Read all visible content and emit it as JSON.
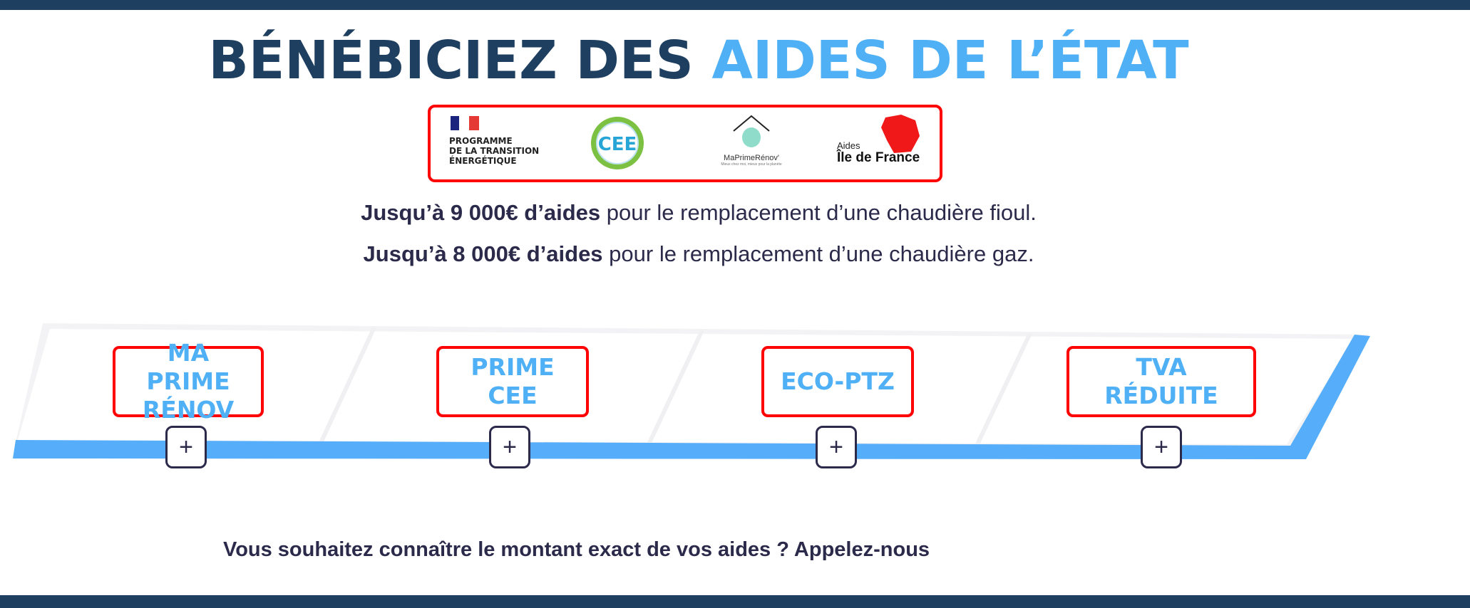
{
  "title": {
    "part1": "BÉNÉBICIEZ DES",
    "part2": "AIDES DE L’ÉTAT"
  },
  "logos": {
    "programme": [
      "PROGRAMME",
      "DE LA TRANSITION",
      "ÉNERGÉTIQUE"
    ],
    "cee": "CEE",
    "maprimerenov": "MaPrimeRénov'",
    "maprimerenov_tagline": "Mieux chez moi, mieux pour la planète",
    "idf_small": "Aides",
    "idf_big": "Île de France"
  },
  "lines": [
    {
      "bold": "Jusqu’à 9 000€ d’aides",
      "rest": " pour le remplacement d’une chaudière fioul."
    },
    {
      "bold": "Jusqu’à 8 000€ d’aides",
      "rest": " pour le remplacement d’une chaudière gaz."
    }
  ],
  "aids": [
    {
      "label": "MA PRIME RÉNOV",
      "expand": "+"
    },
    {
      "label": "PRIME CEE",
      "expand": "+"
    },
    {
      "label": "ECO-PTZ",
      "expand": "+"
    },
    {
      "label": "TVA RÉDUITE",
      "expand": "+"
    }
  ],
  "cta": "Vous souhaitez connaître le montant exact de vos aides ? Appelez-nous",
  "colors": {
    "navy": "#1e3f5f",
    "accent": "#4fb0f5",
    "highlight": "#ff0000",
    "bar": "#56aefb",
    "text": "#2b2a4a"
  }
}
